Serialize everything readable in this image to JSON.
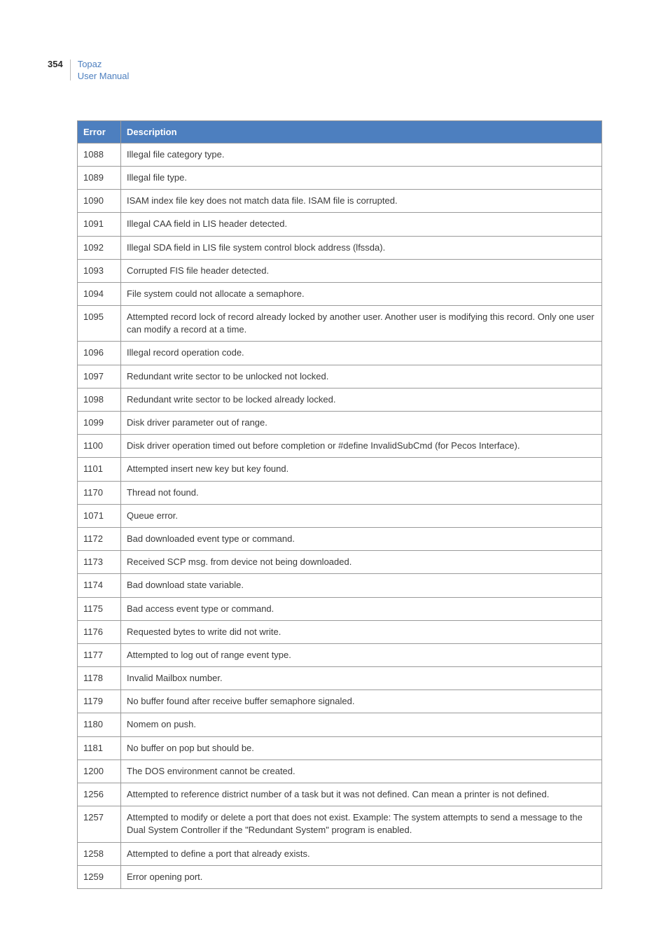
{
  "header": {
    "page_number": "354",
    "product": "Topaz",
    "doc_title": "User Manual"
  },
  "table": {
    "columns": [
      "Error",
      "Description"
    ],
    "rows": [
      [
        "1088",
        "Illegal file category type."
      ],
      [
        "1089",
        "Illegal file type."
      ],
      [
        "1090",
        "ISAM index file key does not match data file. ISAM file is corrupted."
      ],
      [
        "1091",
        "Illegal CAA field in LIS header detected."
      ],
      [
        "1092",
        "Illegal SDA field in LIS file system control block address (lfssda)."
      ],
      [
        "1093",
        "Corrupted FIS file header detected."
      ],
      [
        "1094",
        "File system could not allocate a semaphore."
      ],
      [
        "1095",
        "Attempted record lock of record already locked by another user. Another user is modifying this record. Only one user can modify a record at a time."
      ],
      [
        "1096",
        "Illegal record operation code."
      ],
      [
        "1097",
        "Redundant write sector to be unlocked not locked."
      ],
      [
        "1098",
        "Redundant write sector to be locked already locked."
      ],
      [
        "1099",
        "Disk driver parameter out of range."
      ],
      [
        "1100",
        "Disk driver operation timed out before completion or #define InvalidSubCmd (for Pecos Interface)."
      ],
      [
        "1101",
        "Attempted insert new key but key found."
      ],
      [
        "1170",
        "Thread not found."
      ],
      [
        "1071",
        "Queue error."
      ],
      [
        "1172",
        "Bad downloaded event type or command."
      ],
      [
        "1173",
        "Received SCP msg. from device not being downloaded."
      ],
      [
        "1174",
        "Bad download state variable."
      ],
      [
        "1175",
        "Bad access event type or command."
      ],
      [
        "1176",
        "Requested bytes to write did not write."
      ],
      [
        "1177",
        "Attempted to log out of range event type."
      ],
      [
        "1178",
        "Invalid Mailbox number."
      ],
      [
        "1179",
        "No buffer found after receive buffer semaphore signaled."
      ],
      [
        "1180",
        "Nomem on push."
      ],
      [
        "1181",
        "No buffer on pop but should be."
      ],
      [
        "1200",
        "The DOS environment cannot be created."
      ],
      [
        "1256",
        "Attempted to reference district number of a task but it was not defined. Can mean a printer is not defined."
      ],
      [
        "1257",
        "Attempted to modify or delete a port that does not exist. Example: The system attempts to send a message to the Dual System Controller if the \"Redundant System\" program is enabled."
      ],
      [
        "1258",
        "Attempted to define a port that already exists."
      ],
      [
        "1259",
        "Error opening port."
      ]
    ]
  },
  "style": {
    "header_bg": "#4d7fbf",
    "header_text": "#ffffff",
    "border_color": "#9a9a9a",
    "link_color": "#4d7fbf"
  }
}
